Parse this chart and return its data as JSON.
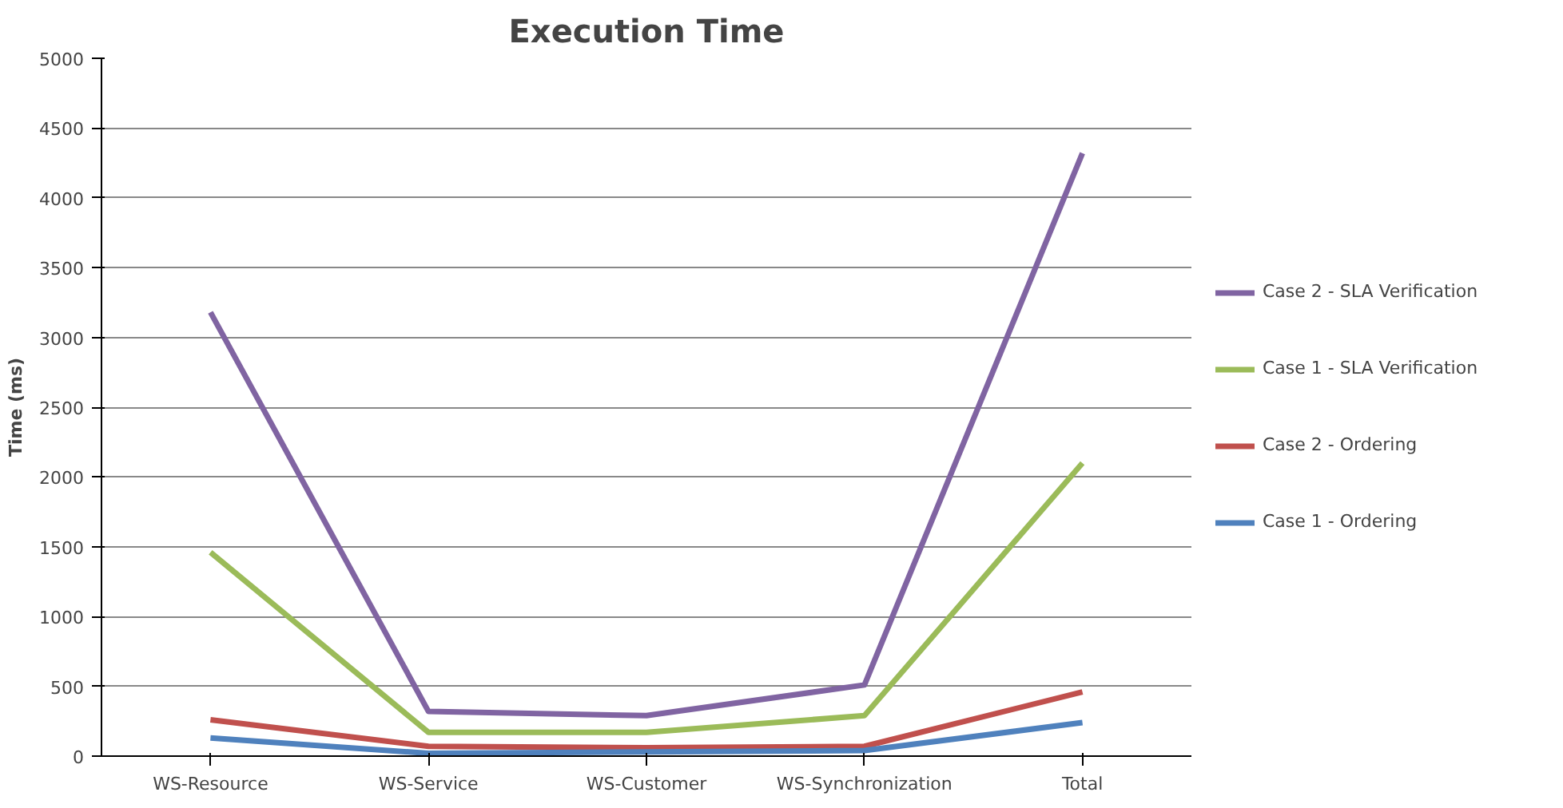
{
  "chart_data": {
    "type": "line",
    "title": "Execution Time",
    "ylabel": "Time (ms)",
    "categories": [
      "WS-Resource",
      "WS-Service",
      "WS-Customer",
      "WS-Synchronization",
      "Total"
    ],
    "series": [
      {
        "name": "Case 2 - SLA Verification",
        "color": "#8064a2",
        "values": [
          3180,
          320,
          290,
          510,
          4320
        ]
      },
      {
        "name": "Case 1 - SLA Verification",
        "color": "#9bbb59",
        "values": [
          1460,
          170,
          170,
          290,
          2100
        ]
      },
      {
        "name": "Case 2 - Ordering",
        "color": "#c0504d",
        "values": [
          260,
          70,
          60,
          70,
          460
        ]
      },
      {
        "name": "Case 1 - Ordering",
        "color": "#4f81bd",
        "values": [
          130,
          20,
          30,
          40,
          240
        ]
      }
    ],
    "ylim": [
      0,
      5000
    ],
    "yticks": [
      0,
      500,
      1000,
      1500,
      2000,
      2500,
      3000,
      3500,
      4000,
      4500,
      5000
    ],
    "grid": "y",
    "legend": "right",
    "marker": "none",
    "line_style": "solid"
  }
}
